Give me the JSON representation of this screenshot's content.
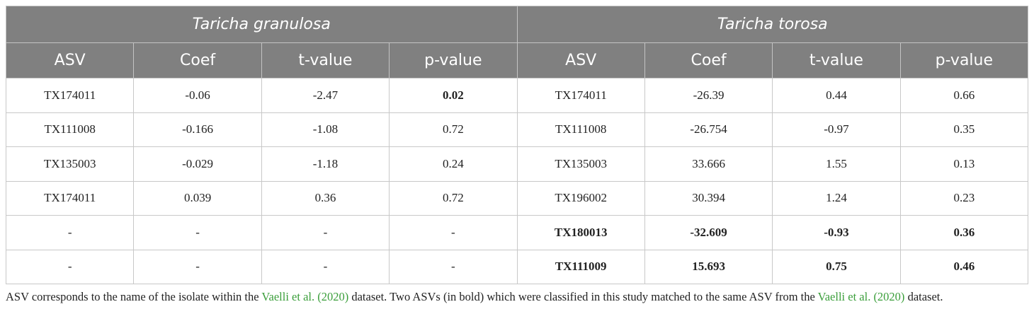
{
  "table": {
    "groups": [
      "Taricha granulosa",
      "Taricha torosa"
    ],
    "columns": [
      "ASV",
      "Coef",
      "t-value",
      "p-value",
      "ASV",
      "Coef",
      "t-value",
      "p-value"
    ],
    "rows": [
      [
        "TX174011",
        "-0.06",
        "-2.47",
        "0.02",
        "TX174011",
        "-26.39",
        "0.44",
        "0.66"
      ],
      [
        "TX111008",
        "-0.166",
        "-1.08",
        "0.72",
        "TX111008",
        "-26.754",
        "-0.97",
        "0.35"
      ],
      [
        "TX135003",
        "-0.029",
        "-1.18",
        "0.24",
        "TX135003",
        "33.666",
        "1.55",
        "0.13"
      ],
      [
        "TX174011",
        "0.039",
        "0.36",
        "0.72",
        "TX196002",
        "30.394",
        "1.24",
        "0.23"
      ],
      [
        "-",
        "-",
        "-",
        "-",
        "TX180013",
        "-32.609",
        "-0.93",
        "0.36"
      ],
      [
        "-",
        "-",
        "-",
        "-",
        "TX111009",
        "15.693",
        "0.75",
        "0.46"
      ]
    ]
  },
  "caption": {
    "parts": [
      {
        "text": "ASV corresponds to the name of the isolate within the "
      },
      {
        "text": "Vaelli et al. (2020)",
        "link": true
      },
      {
        "text": " dataset. Two ASVs (in bold) which were classified in this study matched to the same ASV from the "
      },
      {
        "text": "Vaelli et al. (2020)",
        "link": true
      },
      {
        "text": " dataset."
      }
    ]
  }
}
